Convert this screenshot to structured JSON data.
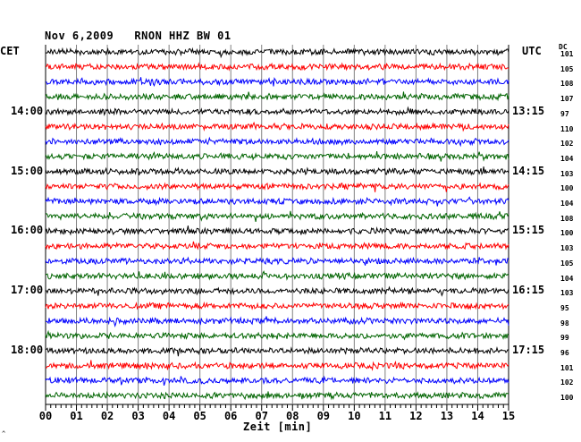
{
  "header": {
    "title": "Nov 6,2009   RNON HHZ BW 01",
    "left_label": "CET",
    "right_label": "UTC",
    "dc_label": "DC"
  },
  "footer": {
    "xlabel": "Zeit [min]",
    "corner_mark": "^"
  },
  "colors": {
    "trace_cycle": [
      "#000000",
      "#ff0000",
      "#0000ff",
      "#006400"
    ],
    "grid": "#808080"
  },
  "chart_data": {
    "type": "line",
    "xlabel": "Zeit [min]",
    "xlim": [
      0,
      15
    ],
    "x_ticks": [
      "00",
      "01",
      "02",
      "03",
      "04",
      "05",
      "06",
      "07",
      "08",
      "09",
      "10",
      "11",
      "12",
      "13",
      "14",
      "15"
    ],
    "grid": "vertical lines each minute",
    "rows_per_hour": 4,
    "minutes_per_row": 15,
    "cet_hour_labels": [
      "14:00",
      "15:00",
      "16:00",
      "17:00",
      "18:00"
    ],
    "utc_hour_labels": [
      "13:15",
      "14:15",
      "15:15",
      "16:15",
      "17:15"
    ],
    "dc_offsets": [
      101,
      105,
      108,
      107,
      97,
      110,
      102,
      104,
      103,
      100,
      104,
      108,
      100,
      103,
      105,
      104,
      103,
      95,
      98,
      99,
      96,
      101,
      102,
      100
    ]
  }
}
